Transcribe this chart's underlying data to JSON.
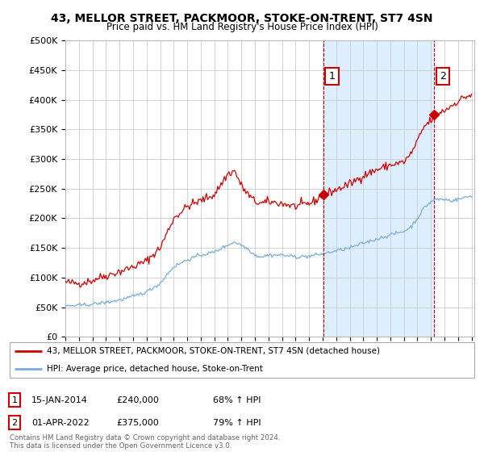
{
  "title": "43, MELLOR STREET, PACKMOOR, STOKE-ON-TRENT, ST7 4SN",
  "subtitle": "Price paid vs. HM Land Registry's House Price Index (HPI)",
  "ylabel_ticks": [
    "£0",
    "£50K",
    "£100K",
    "£150K",
    "£200K",
    "£250K",
    "£300K",
    "£350K",
    "£400K",
    "£450K",
    "£500K"
  ],
  "ytick_values": [
    0,
    50000,
    100000,
    150000,
    200000,
    250000,
    300000,
    350000,
    400000,
    450000,
    500000
  ],
  "ylim": [
    0,
    500000
  ],
  "xlim_start": 1995.0,
  "xlim_end": 2025.2,
  "xtick_years": [
    1995,
    1996,
    1997,
    1998,
    1999,
    2000,
    2001,
    2002,
    2003,
    2004,
    2005,
    2006,
    2007,
    2008,
    2009,
    2010,
    2011,
    2012,
    2013,
    2014,
    2015,
    2016,
    2017,
    2018,
    2019,
    2020,
    2021,
    2022,
    2023,
    2024,
    2025
  ],
  "red_color": "#cc0000",
  "blue_color": "#7aaddb",
  "shade_color": "#ddeeff",
  "bg_color": "#ffffff",
  "grid_color": "#cccccc",
  "sale1_x": 2014.04,
  "sale1_y": 240000,
  "sale2_x": 2022.25,
  "sale2_y": 375000,
  "legend_entries": [
    {
      "label": "43, MELLOR STREET, PACKMOOR, STOKE-ON-TRENT, ST7 4SN (detached house)",
      "color": "#cc0000"
    },
    {
      "label": "HPI: Average price, detached house, Stoke-on-Trent",
      "color": "#7aaddb"
    }
  ],
  "annotation_table": [
    {
      "num": "1",
      "date": "15-JAN-2014",
      "price": "£240,000",
      "pct": "68% ↑ HPI"
    },
    {
      "num": "2",
      "date": "01-APR-2022",
      "price": "£375,000",
      "pct": "79% ↑ HPI"
    }
  ],
  "footer": "Contains HM Land Registry data © Crown copyright and database right 2024.\nThis data is licensed under the Open Government Licence v3.0."
}
